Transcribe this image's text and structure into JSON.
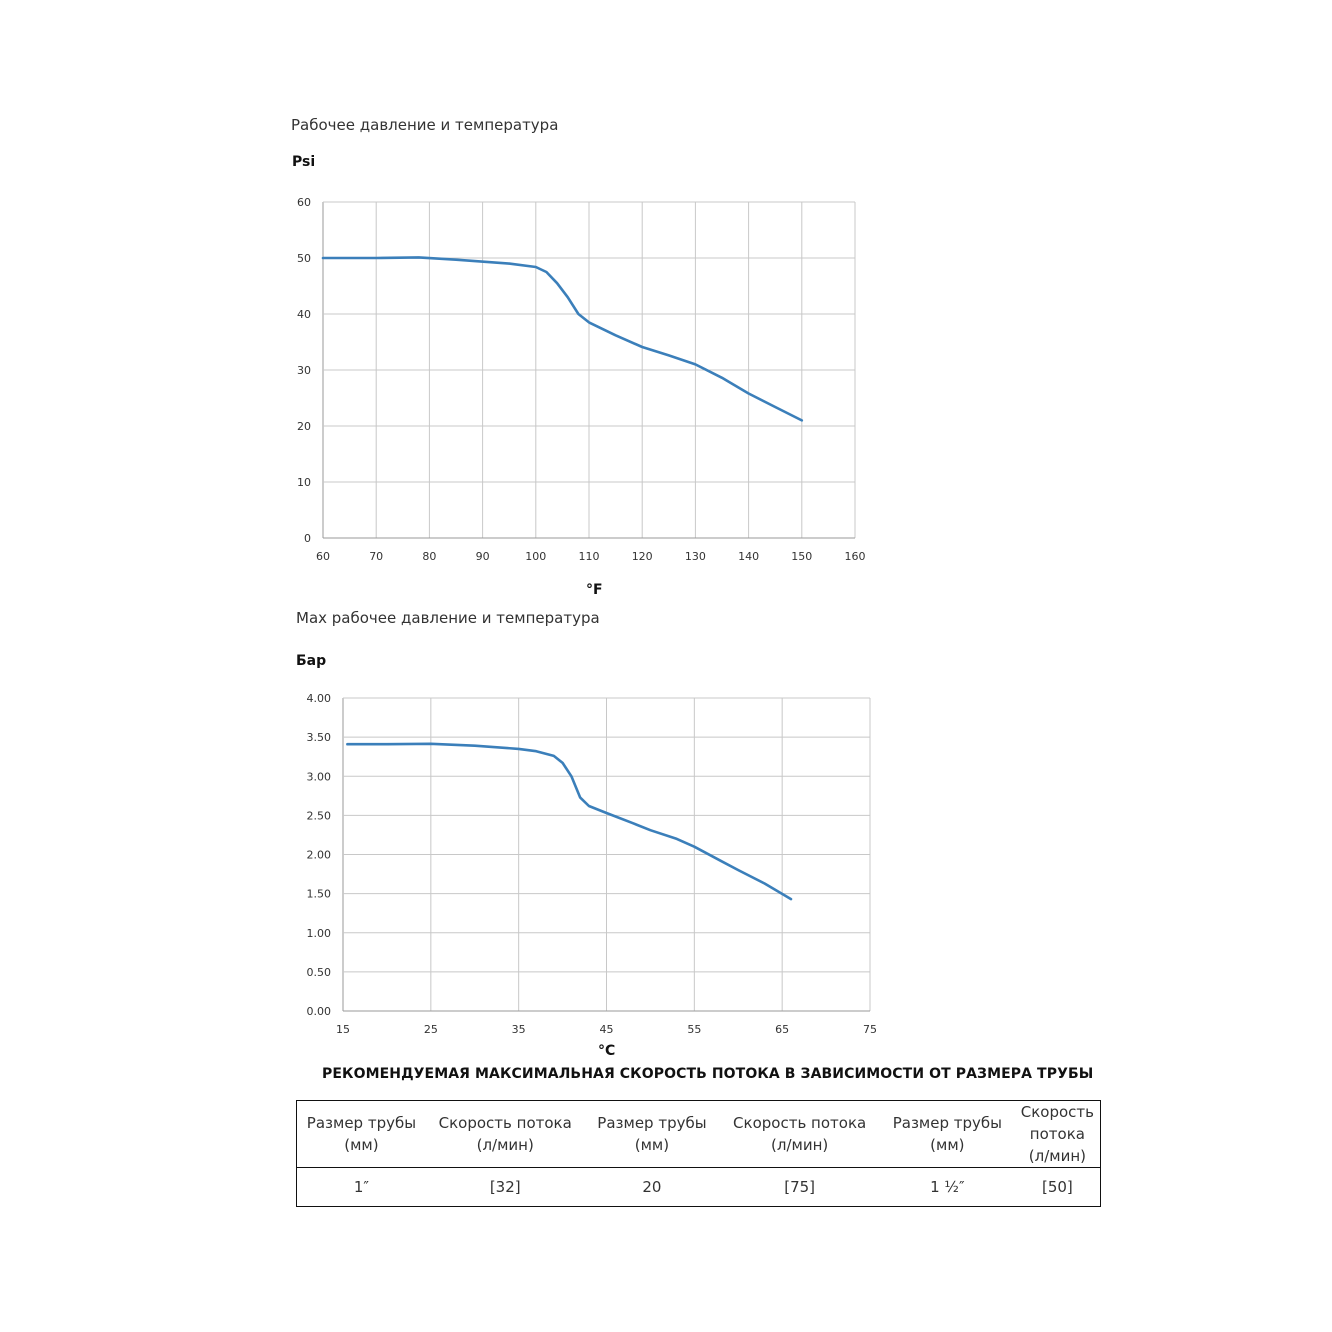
{
  "chart_data": [
    {
      "type": "line",
      "title": "Рабочее давление и температура",
      "ylabel": "Psi",
      "xlabel": "°F",
      "xlim": [
        60,
        160
      ],
      "ylim": [
        0,
        60
      ],
      "xticks": [
        "60",
        "70",
        "80",
        "90",
        "100",
        "110",
        "120",
        "130",
        "140",
        "150",
        "160"
      ],
      "yticks": [
        "0",
        "10",
        "20",
        "30",
        "40",
        "50",
        "60"
      ],
      "grid": true,
      "series": [
        {
          "color": "#3b7fba",
          "x": [
            60,
            70,
            78,
            85,
            95,
            100,
            102,
            104,
            106,
            108,
            110,
            115,
            120,
            125,
            130,
            135,
            140,
            145,
            150
          ],
          "y": [
            50,
            50,
            50.1,
            49.7,
            49,
            48.4,
            47.5,
            45.5,
            43,
            40,
            38.5,
            36.2,
            34.1,
            32.6,
            31,
            28.6,
            25.8,
            23.4,
            21
          ]
        }
      ]
    },
    {
      "type": "line",
      "title": "Max рабочее давление и температура",
      "ylabel": "Бар",
      "xlabel": "°C",
      "xlim": [
        15,
        75
      ],
      "ylim": [
        0,
        4
      ],
      "xticks": [
        "15",
        "25",
        "35",
        "45",
        "55",
        "65",
        "75"
      ],
      "yticks": [
        "0.00",
        "0.50",
        "1.00",
        "1.50",
        "2.00",
        "2.50",
        "3.00",
        "3.50",
        "4.00"
      ],
      "grid": true,
      "series": [
        {
          "color": "#3b7fba",
          "x": [
            15.5,
            20,
            25,
            30,
            35,
            37,
            39,
            40,
            41,
            42,
            43,
            45,
            48,
            50,
            53,
            55,
            58,
            60,
            63,
            66
          ],
          "y": [
            3.41,
            3.41,
            3.415,
            3.39,
            3.35,
            3.32,
            3.26,
            3.17,
            3.0,
            2.73,
            2.62,
            2.53,
            2.4,
            2.31,
            2.2,
            2.1,
            1.92,
            1.8,
            1.63,
            1.43
          ]
        }
      ]
    }
  ],
  "flow_section": {
    "title": "РЕКОМЕНДУЕМАЯ МАКСИМАЛЬНАЯ СКОРОСТЬ ПОТОКА В ЗАВИСИМОСТИ ОТ РАЗМЕРА ТРУБЫ",
    "headers": [
      "Размер трубы (мм)",
      "Скорость потока (л/мин)",
      "Размер трубы (мм)",
      "Скорость потока (л/мин)",
      "Размер трубы (мм)",
      "Скорость потока (л/мин)"
    ],
    "row": [
      "1″",
      "[32]",
      "20",
      "[75]",
      "1 ½″",
      "[50]"
    ]
  }
}
